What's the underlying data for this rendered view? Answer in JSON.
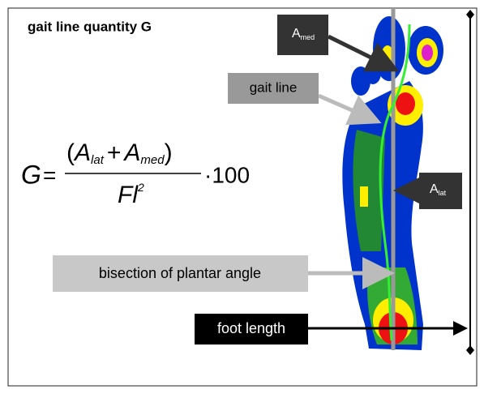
{
  "title": "gait line quantity G",
  "formula": {
    "lhs": "G",
    "equals": "=",
    "numerator": {
      "open": "(",
      "a1": "A",
      "a1_sub": "lat",
      "plus": "+",
      "a2": "A",
      "a2_sub": "med",
      "close": ")"
    },
    "denominator": {
      "base": "Fl",
      "exp": "2"
    },
    "multiplier": "·100"
  },
  "labels": {
    "a_med": {
      "base": "A",
      "sub": "med"
    },
    "gait_line": "gait line",
    "a_lat": {
      "base": "A",
      "sub": "lat"
    },
    "bisection": "bisection of plantar angle",
    "foot_length": "foot length"
  }
}
